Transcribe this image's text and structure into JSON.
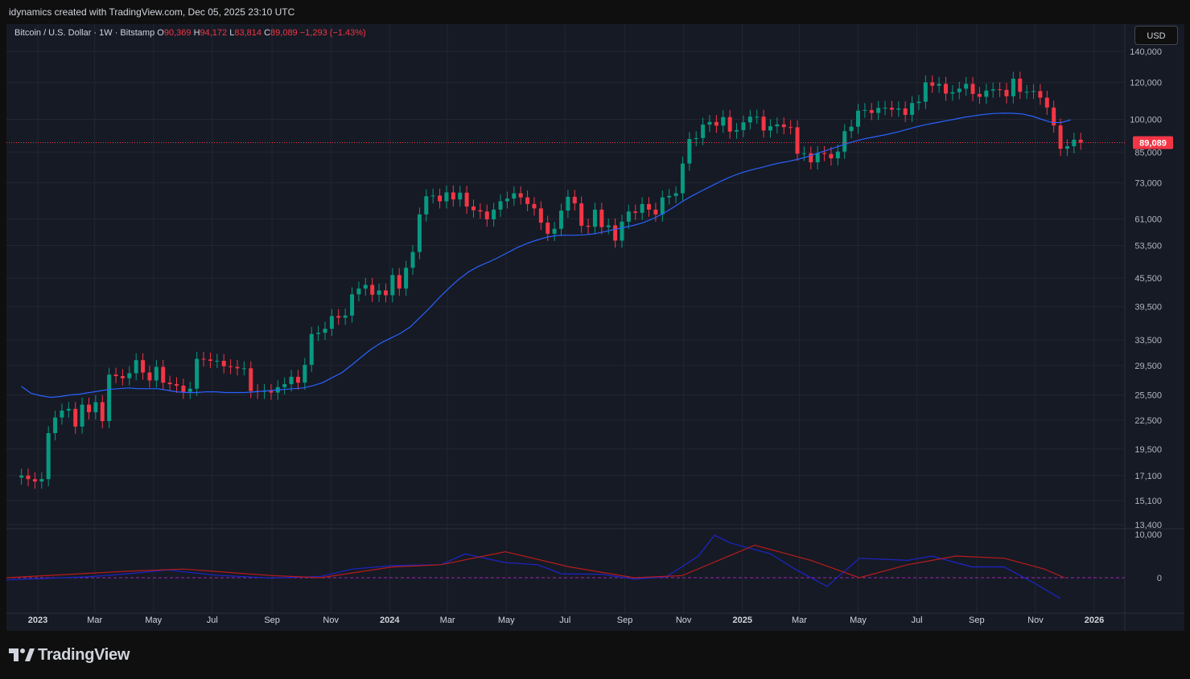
{
  "header": {
    "attribution": "idynamics created with TradingView.com, Dec 05, 2025 23:10 UTC"
  },
  "legend": {
    "symbol": "Bitcoin / U.S. Dollar · 1W · Bitstamp",
    "o_label": "O",
    "o_value": "90,369",
    "h_label": "H",
    "h_value": "94,172",
    "l_label": "L",
    "l_value": "83,814",
    "c_label": "C",
    "c_value": "89,089",
    "change": "−1,293 (−1.43%)"
  },
  "currency_button": "USD",
  "brand": {
    "name": "TradingView"
  },
  "colors": {
    "up": "#089981",
    "down": "#f23645",
    "ma": "#2962ff",
    "signal": "#b71c1c",
    "zero": "#9c27b0",
    "bg": "#161a25",
    "grid": "#232632"
  },
  "chart_data": {
    "type": "candlestick",
    "price_labels": [
      "140,000",
      "120,000",
      "100,000",
      "85,000",
      "73,000",
      "61,000",
      "53,500",
      "45,500",
      "39,500",
      "33,500",
      "29,500",
      "25,500",
      "22,500",
      "19,500",
      "17,100",
      "15,100",
      "13,400"
    ],
    "price_ticks": [
      140000,
      120000,
      100000,
      85000,
      73000,
      61000,
      53500,
      45500,
      39500,
      33500,
      29500,
      25500,
      22500,
      19500,
      17100,
      15100,
      13400
    ],
    "last_price_label": "89,089",
    "last_price": 89089,
    "oscillator_labels": [
      "10,000",
      "0"
    ],
    "oscillator_ticks": [
      10000,
      0
    ],
    "x_labels": [
      "2023",
      "Mar",
      "May",
      "Jul",
      "Sep",
      "Nov",
      "2024",
      "Mar",
      "May",
      "Jul",
      "Sep",
      "Nov",
      "2025",
      "Mar",
      "May",
      "Jul",
      "Sep",
      "Nov",
      "2026"
    ],
    "x_label_dates": [
      "2023-01-01",
      "2023-03-01",
      "2023-05-01",
      "2023-07-01",
      "2023-09-01",
      "2023-11-01",
      "2024-01-01",
      "2024-03-01",
      "2024-05-01",
      "2024-07-01",
      "2024-09-01",
      "2024-11-01",
      "2025-01-01",
      "2025-03-01",
      "2025-05-01",
      "2025-07-01",
      "2025-09-01",
      "2025-11-01",
      "2026-01-01"
    ],
    "weeks_start": "2022-12-12",
    "closes": [
      17100,
      16800,
      16600,
      16800,
      21100,
      22800,
      23600,
      23800,
      21800,
      24300,
      23400,
      24600,
      22400,
      28200,
      28000,
      27700,
      28400,
      30300,
      28500,
      27400,
      29300,
      27100,
      26900,
      26700,
      25900,
      26300,
      30500,
      30400,
      30200,
      30200,
      29400,
      29300,
      29100,
      29100,
      26000,
      25900,
      26000,
      25800,
      26500,
      26900,
      27900,
      27100,
      29600,
      34500,
      34700,
      35400,
      37700,
      37400,
      37800,
      42000,
      43200,
      44000,
      41900,
      42800,
      41800,
      46200,
      43200,
      47900,
      51800,
      62400,
      68300,
      68500,
      66600,
      69600,
      67200,
      69500,
      64900,
      63700,
      63300,
      60900,
      63900,
      66600,
      67500,
      69300,
      67900,
      65700,
      64300,
      59900,
      56700,
      58100,
      63600,
      68100,
      65900,
      59000,
      58700,
      63900,
      58600,
      59100,
      54800,
      60200,
      63300,
      62900,
      65700,
      63900,
      62400,
      67900,
      68400,
      69300,
      80300,
      90700,
      91100,
      97400,
      98700,
      96900,
      101100,
      94100,
      94800,
      98500,
      101300,
      101300,
      94600,
      96600,
      97500,
      96200,
      96100,
      84300,
      84500,
      80800,
      84600,
      84200,
      82400,
      85200,
      94300,
      96400,
      104400,
      104700,
      103200,
      105800,
      105900,
      104900,
      105500,
      102200,
      108400,
      109100,
      120100,
      118100,
      119200,
      113600,
      114400,
      116400,
      119200,
      113400,
      111800,
      115300,
      116000,
      115700,
      112100,
      122300,
      114600,
      114600,
      115000,
      111300,
      106000,
      97000,
      86400,
      87500,
      90369,
      89089
    ],
    "ma": [
      26600,
      25700,
      25400,
      25200,
      25300,
      25500,
      25600,
      25800,
      26000,
      26200,
      26300,
      26400,
      26300,
      26300,
      26300,
      26100,
      25900,
      25800,
      25800,
      25900,
      25900,
      25800,
      25800,
      25800,
      25900,
      26000,
      26100,
      26200,
      26300,
      26400,
      26700,
      27100,
      27800,
      28500,
      29600,
      30800,
      32000,
      33000,
      33800,
      34600,
      35700,
      37400,
      39200,
      41300,
      43300,
      45200,
      46900,
      48200,
      49200,
      50300,
      51600,
      52900,
      54000,
      54900,
      55700,
      56200,
      56300,
      56300,
      56400,
      56700,
      57300,
      57900,
      58500,
      59100,
      59900,
      61100,
      62600,
      64400,
      66500,
      68400,
      70100,
      71800,
      73600,
      75200,
      76600,
      77700,
      78600,
      79600,
      80500,
      81200,
      82100,
      83200,
      84600,
      85900,
      87300,
      88700,
      90000,
      91000,
      91800,
      92700,
      93700,
      94900,
      96200,
      97300,
      98200,
      99100,
      100000,
      101000,
      101700,
      102400,
      102900,
      103100,
      103000,
      102700,
      101600,
      100000,
      98500,
      98400,
      99700
    ],
    "oscillator": {
      "macd_peak_range": [
        -3000,
        10000
      ]
    },
    "grid": true,
    "legend_position": "top-left"
  }
}
